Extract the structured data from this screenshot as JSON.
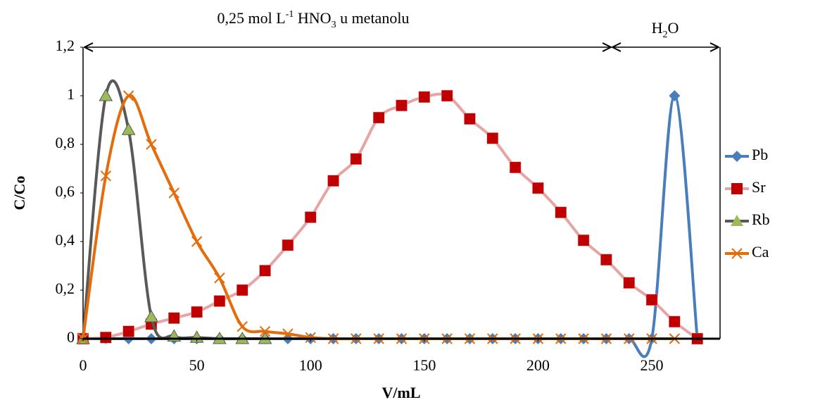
{
  "chart_data": {
    "type": "line",
    "annotations": [
      {
        "parts": [
          "0,25 mol L",
          "-1",
          " HNO",
          "3",
          " u metanolu"
        ]
      },
      {
        "parts": [
          "H",
          "2",
          "O"
        ]
      }
    ],
    "x_label": "V/mL",
    "y_label": "C/Co",
    "x": [
      0,
      10,
      20,
      30,
      40,
      50,
      60,
      70,
      80,
      90,
      100,
      110,
      120,
      130,
      140,
      150,
      160,
      170,
      180,
      190,
      200,
      210,
      220,
      230,
      240,
      250,
      260,
      270
    ],
    "series": [
      {
        "name": "Pb",
        "color": "#4a7ebb",
        "marker_color": "#4a7ebb",
        "marker": "diamond",
        "values": [
          0,
          0,
          0,
          0,
          0,
          0,
          0,
          0,
          0,
          0,
          0,
          0,
          0,
          0,
          0,
          0,
          0,
          0,
          0,
          0,
          0,
          0,
          0,
          0,
          0,
          0,
          1,
          0
        ]
      },
      {
        "name": "Sr",
        "color": "#e6a5a5",
        "marker_color": "#c00000",
        "marker": "square",
        "values": [
          0,
          0.005,
          0.03,
          0.06,
          0.085,
          0.11,
          0.155,
          0.2,
          0.28,
          0.385,
          0.5,
          0.65,
          0.74,
          0.91,
          0.96,
          0.995,
          1.0,
          0.905,
          0.825,
          0.705,
          0.62,
          0.52,
          0.405,
          0.325,
          0.23,
          0.16,
          0.07,
          0
        ]
      },
      {
        "name": "Rb",
        "color": "#595959",
        "marker_color": "#9bbb59",
        "marker": "triangle",
        "values": [
          0,
          1.0,
          0.86,
          0.09,
          0.01,
          0.005,
          0,
          0,
          0,
          null,
          null,
          null,
          null,
          null,
          null,
          null,
          null,
          null,
          null,
          null,
          null,
          null,
          null,
          null,
          null,
          null,
          null,
          null
        ]
      },
      {
        "name": "Ca",
        "color": "#e46c0a",
        "marker_color": "#e46c0a",
        "marker": "x",
        "values": [
          0,
          0.67,
          1.0,
          0.8,
          0.6,
          0.4,
          0.25,
          0.05,
          0.03,
          0.02,
          0.005,
          0,
          0,
          0,
          0,
          0,
          0,
          0,
          0,
          0,
          0,
          0,
          0,
          0,
          0,
          0,
          0,
          null
        ]
      }
    ],
    "xlim": [
      0,
      280
    ],
    "xticks": [
      0,
      50,
      100,
      150,
      200,
      250
    ],
    "ylim": [
      0,
      1.2
    ],
    "yticks": [
      0,
      {
        "value": 0.2,
        "label": "0,2"
      },
      {
        "value": 0.4,
        "label": "0,4"
      },
      {
        "value": 0.6,
        "label": "0,6"
      },
      {
        "value": 0.8,
        "label": "0,8"
      },
      1,
      {
        "value": 1.2,
        "label": "1,2"
      }
    ],
    "smooth": true,
    "legend": "right"
  }
}
